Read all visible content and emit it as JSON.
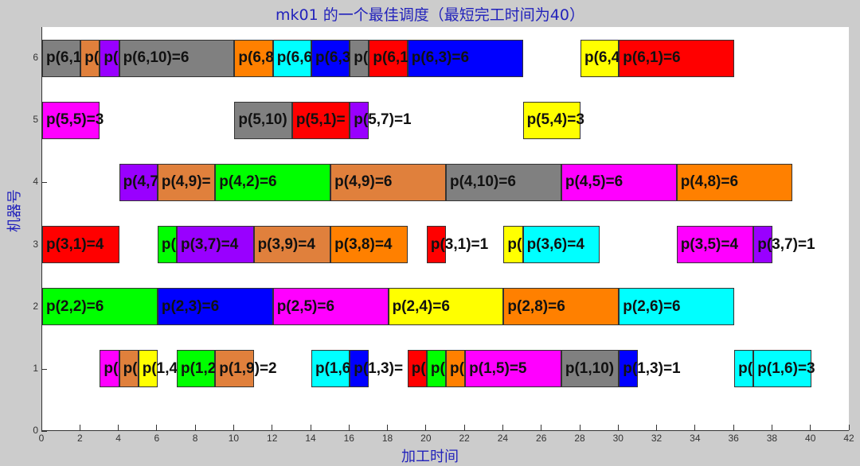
{
  "chart_data": {
    "type": "gantt",
    "title": "mk01 的一个最佳调度（最短完工时间为40）",
    "xlabel": "加工时间",
    "ylabel": "机器号",
    "xlim": [
      0,
      42
    ],
    "ylim": [
      0,
      6.5
    ],
    "xticks": [
      0,
      2,
      4,
      6,
      8,
      10,
      12,
      14,
      16,
      18,
      20,
      22,
      24,
      26,
      28,
      30,
      32,
      34,
      36,
      38,
      40,
      42
    ],
    "yticks": [
      0,
      1,
      2,
      3,
      4,
      5,
      6
    ],
    "bar_height": 0.6,
    "makespan": 40,
    "colors": {
      "gray": "#808080",
      "brownorange": "#E0803C",
      "purple": "#9900FF",
      "orange": "#FF8000",
      "cyan": "#00FFFF",
      "blue": "#0000FF",
      "red": "#FF0000",
      "yellow": "#FFFF00",
      "magenta": "#FF00FF",
      "green": "#00FF00"
    },
    "tasks": [
      {
        "machine": 6,
        "start": 0,
        "end": 2,
        "color": "#808080",
        "label": "p(6,1"
      },
      {
        "machine": 6,
        "start": 2,
        "end": 3,
        "color": "#E0803C",
        "label": "p("
      },
      {
        "machine": 6,
        "start": 3,
        "end": 4,
        "color": "#9900FF",
        "label": "p("
      },
      {
        "machine": 6,
        "start": 4,
        "end": 10,
        "color": "#808080",
        "label": "p(6,10)=6"
      },
      {
        "machine": 6,
        "start": 10,
        "end": 12,
        "color": "#FF8000",
        "label": "p(6,8"
      },
      {
        "machine": 6,
        "start": 12,
        "end": 14,
        "color": "#00FFFF",
        "label": "p(6,6"
      },
      {
        "machine": 6,
        "start": 14,
        "end": 16,
        "color": "#0000FF",
        "label": "p(6,3"
      },
      {
        "machine": 6,
        "start": 16,
        "end": 17,
        "color": "#808080",
        "label": "p("
      },
      {
        "machine": 6,
        "start": 17,
        "end": 19,
        "color": "#FF0000",
        "label": "p(6,1"
      },
      {
        "machine": 6,
        "start": 19,
        "end": 25,
        "color": "#0000FF",
        "label": "p(6,3)=6"
      },
      {
        "machine": 6,
        "start": 28,
        "end": 30,
        "color": "#FFFF00",
        "label": "p(6,4"
      },
      {
        "machine": 6,
        "start": 30,
        "end": 36,
        "color": "#FF0000",
        "label": "p(6,1)=6"
      },
      {
        "machine": 5,
        "start": 0,
        "end": 3,
        "color": "#FF00FF",
        "label": "p(5,5)=3"
      },
      {
        "machine": 5,
        "start": 10,
        "end": 13,
        "color": "#808080",
        "label": "p(5,10)"
      },
      {
        "machine": 5,
        "start": 13,
        "end": 16,
        "color": "#FF0000",
        "label": "p(5,1)="
      },
      {
        "machine": 5,
        "start": 16,
        "end": 17,
        "color": "#9900FF",
        "label": "p(5,7)=1"
      },
      {
        "machine": 5,
        "start": 25,
        "end": 28,
        "color": "#FFFF00",
        "label": "p(5,4)=3"
      },
      {
        "machine": 4,
        "start": 4,
        "end": 6,
        "color": "#9900FF",
        "label": "p(4,7"
      },
      {
        "machine": 4,
        "start": 6,
        "end": 9,
        "color": "#E0803C",
        "label": "p(4,9)="
      },
      {
        "machine": 4,
        "start": 9,
        "end": 15,
        "color": "#00FF00",
        "label": "p(4,2)=6"
      },
      {
        "machine": 4,
        "start": 15,
        "end": 21,
        "color": "#E0803C",
        "label": "p(4,9)=6"
      },
      {
        "machine": 4,
        "start": 21,
        "end": 27,
        "color": "#808080",
        "label": "p(4,10)=6"
      },
      {
        "machine": 4,
        "start": 27,
        "end": 33,
        "color": "#FF00FF",
        "label": "p(4,5)=6"
      },
      {
        "machine": 4,
        "start": 33,
        "end": 39,
        "color": "#FF8000",
        "label": "p(4,8)=6"
      },
      {
        "machine": 3,
        "start": 0,
        "end": 4,
        "color": "#FF0000",
        "label": "p(3,1)=4"
      },
      {
        "machine": 3,
        "start": 6,
        "end": 7,
        "color": "#00FF00",
        "label": "p("
      },
      {
        "machine": 3,
        "start": 7,
        "end": 11,
        "color": "#9900FF",
        "label": "p(3,7)=4"
      },
      {
        "machine": 3,
        "start": 11,
        "end": 15,
        "color": "#E0803C",
        "label": "p(3,9)=4"
      },
      {
        "machine": 3,
        "start": 15,
        "end": 19,
        "color": "#FF8000",
        "label": "p(3,8)=4"
      },
      {
        "machine": 3,
        "start": 20,
        "end": 21,
        "color": "#FF0000",
        "label": "p(3,1)=1"
      },
      {
        "machine": 3,
        "start": 24,
        "end": 25,
        "color": "#FFFF00",
        "label": "p("
      },
      {
        "machine": 3,
        "start": 25,
        "end": 29,
        "color": "#00FFFF",
        "label": "p(3,6)=4"
      },
      {
        "machine": 3,
        "start": 33,
        "end": 37,
        "color": "#FF00FF",
        "label": "p(3,5)=4"
      },
      {
        "machine": 3,
        "start": 37,
        "end": 38,
        "color": "#9900FF",
        "label": "p(3,7)=1"
      },
      {
        "machine": 2,
        "start": 0,
        "end": 6,
        "color": "#00FF00",
        "label": "p(2,2)=6"
      },
      {
        "machine": 2,
        "start": 6,
        "end": 12,
        "color": "#0000FF",
        "label": "p(2,3)=6"
      },
      {
        "machine": 2,
        "start": 12,
        "end": 18,
        "color": "#FF00FF",
        "label": "p(2,5)=6"
      },
      {
        "machine": 2,
        "start": 18,
        "end": 24,
        "color": "#FFFF00",
        "label": "p(2,4)=6"
      },
      {
        "machine": 2,
        "start": 24,
        "end": 30,
        "color": "#FF8000",
        "label": "p(2,8)=6"
      },
      {
        "machine": 2,
        "start": 30,
        "end": 36,
        "color": "#00FFFF",
        "label": "p(2,6)=6"
      },
      {
        "machine": 1,
        "start": 3,
        "end": 4,
        "color": "#FF00FF",
        "label": "p("
      },
      {
        "machine": 1,
        "start": 4,
        "end": 5,
        "color": "#E0803C",
        "label": "p("
      },
      {
        "machine": 1,
        "start": 5,
        "end": 6,
        "color": "#FFFF00",
        "label": "p(1,4)=1"
      },
      {
        "machine": 1,
        "start": 7,
        "end": 9,
        "color": "#00FF00",
        "label": "p(1,2"
      },
      {
        "machine": 1,
        "start": 9,
        "end": 11,
        "color": "#E0803C",
        "label": "p(1,9)=2"
      },
      {
        "machine": 1,
        "start": 14,
        "end": 16,
        "color": "#00FFFF",
        "label": "p(1,6"
      },
      {
        "machine": 1,
        "start": 16,
        "end": 17,
        "color": "#0000FF",
        "label": "p(1,3)="
      },
      {
        "machine": 1,
        "start": 19,
        "end": 20,
        "color": "#FF0000",
        "label": "p("
      },
      {
        "machine": 1,
        "start": 20,
        "end": 21,
        "color": "#00FF00",
        "label": "p("
      },
      {
        "machine": 1,
        "start": 21,
        "end": 22,
        "color": "#FF8000",
        "label": "p("
      },
      {
        "machine": 1,
        "start": 22,
        "end": 27,
        "color": "#FF00FF",
        "label": "p(1,5)=5"
      },
      {
        "machine": 1,
        "start": 27,
        "end": 30,
        "color": "#808080",
        "label": "p(1,10)"
      },
      {
        "machine": 1,
        "start": 30,
        "end": 31,
        "color": "#0000FF",
        "label": "p(1,3)=1"
      },
      {
        "machine": 1,
        "start": 36,
        "end": 37,
        "color": "#00FFFF",
        "label": "p("
      },
      {
        "machine": 1,
        "start": 37,
        "end": 40,
        "color": "#00FFFF",
        "label": "p(1,6)=3"
      }
    ]
  }
}
